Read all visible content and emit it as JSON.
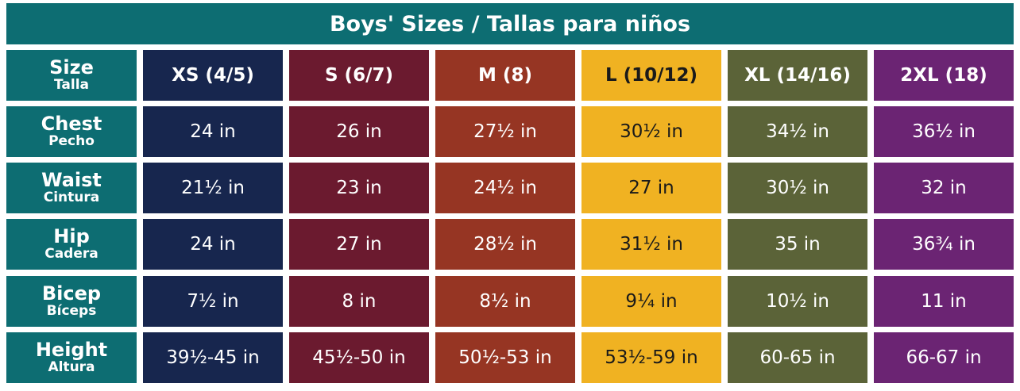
{
  "title": "Boys' Sizes / Tallas para niños",
  "colors": {
    "label_bg": "#0d6d72",
    "columns": [
      "#17264e",
      "#6b1a2f",
      "#963523",
      "#f0b222",
      "#5b6338",
      "#6b2473"
    ],
    "dark_text_on_yellow": "#1a1a1a"
  },
  "header": {
    "label_en": "Size",
    "label_es": "Talla",
    "sizes": [
      "XS (4/5)",
      "S (6/7)",
      "M (8)",
      "L (10/12)",
      "XL (14/16)",
      "2XL (18)"
    ]
  },
  "rows": [
    {
      "label_en": "Chest",
      "label_es": "Pecho",
      "values": [
        "24 in",
        "26 in",
        "27½ in",
        "30½ in",
        "34½ in",
        "36½ in"
      ]
    },
    {
      "label_en": "Waist",
      "label_es": "Cintura",
      "values": [
        "21½ in",
        "23 in",
        "24½ in",
        "27 in",
        "30½ in",
        "32 in"
      ]
    },
    {
      "label_en": "Hip",
      "label_es": "Cadera",
      "values": [
        "24 in",
        "27 in",
        "28½ in",
        "31½ in",
        "35 in",
        "36¾ in"
      ]
    },
    {
      "label_en": "Bicep",
      "label_es": "Bíceps",
      "values": [
        "7½ in",
        "8 in",
        "8½ in",
        "9¼ in",
        "10½ in",
        "11 in"
      ]
    },
    {
      "label_en": "Height",
      "label_es": "Altura",
      "values": [
        "39½-45 in",
        "45½-50 in",
        "50½-53 in",
        "53½-59 in",
        "60-65 in",
        "66-67 in"
      ]
    }
  ]
}
